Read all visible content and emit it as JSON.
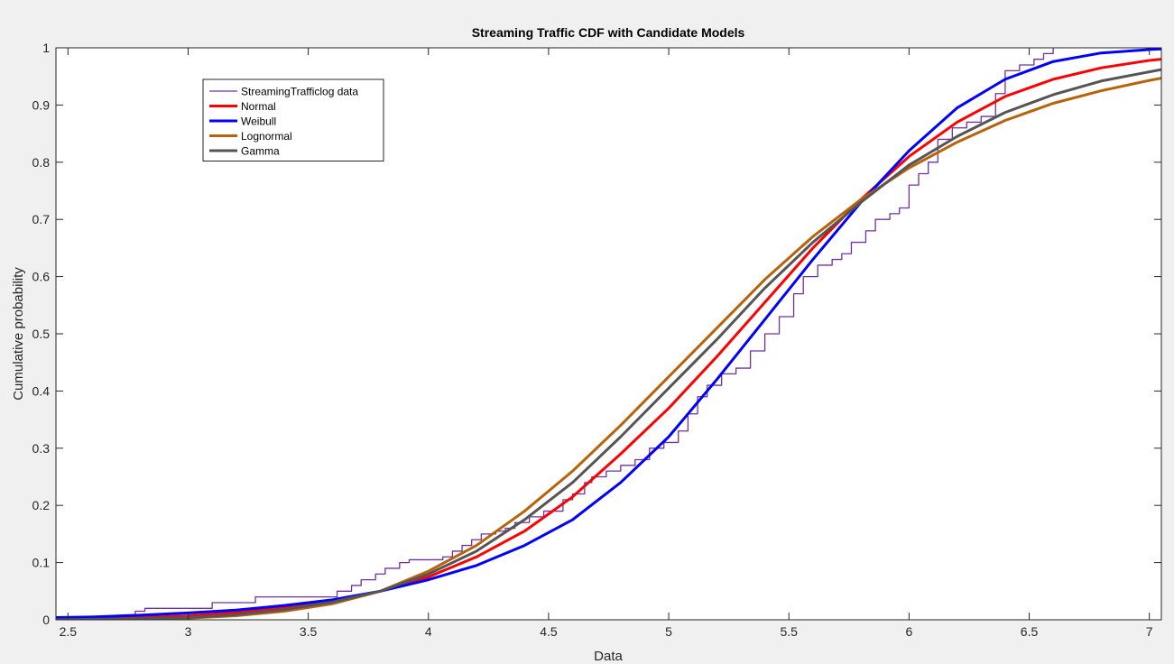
{
  "chart_data": {
    "type": "line",
    "title": "Streaming Traffic CDF with Candidate Models",
    "xlabel": "Data",
    "ylabel": "Cumulative probability",
    "xlim": [
      2.45,
      7.05
    ],
    "ylim": [
      0,
      1
    ],
    "xticks": [
      2.5,
      3,
      3.5,
      4,
      4.5,
      5,
      5.5,
      6,
      6.5,
      7
    ],
    "xtick_labels": [
      "2.5",
      "3",
      "3.5",
      "4",
      "4.5",
      "5",
      "5.5",
      "6",
      "6.5",
      "7"
    ],
    "yticks": [
      0,
      0.1,
      0.2,
      0.3,
      0.4,
      0.5,
      0.6,
      0.7,
      0.8,
      0.9,
      1
    ],
    "ytick_labels": [
      "0",
      "0.1",
      "0.2",
      "0.3",
      "0.4",
      "0.5",
      "0.6",
      "0.7",
      "0.8",
      "0.9",
      "1"
    ],
    "grid": false,
    "legend_position": "top-left",
    "series": [
      {
        "name": "StreamingTrafficlog data",
        "color": "#7030a0",
        "style": "stairs",
        "x": [
          2.45,
          2.6,
          2.78,
          2.82,
          3.1,
          3.28,
          3.62,
          3.68,
          3.72,
          3.78,
          3.82,
          3.88,
          3.92,
          4.06,
          4.1,
          4.14,
          4.18,
          4.22,
          4.28,
          4.32,
          4.36,
          4.42,
          4.48,
          4.56,
          4.6,
          4.65,
          4.68,
          4.74,
          4.8,
          4.86,
          4.92,
          4.98,
          5.04,
          5.08,
          5.12,
          5.16,
          5.22,
          5.28,
          5.34,
          5.4,
          5.46,
          5.52,
          5.56,
          5.62,
          5.68,
          5.72,
          5.76,
          5.82,
          5.86,
          5.92,
          5.96,
          6.0,
          6.04,
          6.08,
          6.12,
          6.18,
          6.24,
          6.3,
          6.36,
          6.4,
          6.46,
          6.52,
          6.56,
          6.6
        ],
        "y": [
          0.0,
          0.005,
          0.015,
          0.02,
          0.03,
          0.04,
          0.05,
          0.06,
          0.07,
          0.08,
          0.09,
          0.1,
          0.105,
          0.11,
          0.12,
          0.13,
          0.14,
          0.15,
          0.155,
          0.16,
          0.17,
          0.18,
          0.19,
          0.21,
          0.22,
          0.24,
          0.25,
          0.26,
          0.27,
          0.28,
          0.3,
          0.31,
          0.33,
          0.36,
          0.39,
          0.41,
          0.43,
          0.44,
          0.47,
          0.5,
          0.53,
          0.57,
          0.6,
          0.62,
          0.63,
          0.64,
          0.66,
          0.68,
          0.7,
          0.71,
          0.72,
          0.76,
          0.78,
          0.8,
          0.84,
          0.86,
          0.87,
          0.88,
          0.92,
          0.96,
          0.97,
          0.98,
          0.99,
          1.0
        ]
      },
      {
        "name": "Normal",
        "color": "#ff0000",
        "style": "line",
        "x": [
          2.45,
          2.6,
          2.8,
          3.0,
          3.2,
          3.4,
          3.6,
          3.8,
          4.0,
          4.2,
          4.4,
          4.6,
          4.8,
          5.0,
          5.2,
          5.4,
          5.6,
          5.8,
          6.0,
          6.2,
          6.4,
          6.6,
          6.8,
          7.0,
          7.05
        ],
        "y": [
          0.001,
          0.002,
          0.004,
          0.007,
          0.013,
          0.022,
          0.034,
          0.05,
          0.075,
          0.11,
          0.155,
          0.215,
          0.29,
          0.37,
          0.46,
          0.555,
          0.65,
          0.735,
          0.81,
          0.87,
          0.915,
          0.945,
          0.965,
          0.978,
          0.98
        ]
      },
      {
        "name": "Weibull",
        "color": "#0000ff",
        "style": "line",
        "x": [
          2.45,
          2.6,
          2.8,
          3.0,
          3.2,
          3.4,
          3.6,
          3.8,
          4.0,
          4.2,
          4.4,
          4.6,
          4.8,
          5.0,
          5.2,
          5.4,
          5.6,
          5.8,
          6.0,
          6.2,
          6.4,
          6.6,
          6.8,
          7.0,
          7.05
        ],
        "y": [
          0.004,
          0.005,
          0.008,
          0.012,
          0.017,
          0.025,
          0.035,
          0.05,
          0.07,
          0.095,
          0.13,
          0.175,
          0.24,
          0.32,
          0.42,
          0.525,
          0.63,
          0.73,
          0.82,
          0.895,
          0.945,
          0.976,
          0.991,
          0.997,
          0.998
        ]
      },
      {
        "name": "Lognormal",
        "color": "#b8620a",
        "style": "line",
        "x": [
          2.45,
          2.6,
          2.8,
          3.0,
          3.2,
          3.4,
          3.6,
          3.8,
          4.0,
          4.2,
          4.4,
          4.6,
          4.8,
          5.0,
          5.2,
          5.4,
          5.6,
          5.8,
          6.0,
          6.2,
          6.4,
          6.6,
          6.8,
          7.0,
          7.05
        ],
        "y": [
          0.0,
          0.0,
          0.001,
          0.003,
          0.007,
          0.015,
          0.028,
          0.05,
          0.085,
          0.13,
          0.19,
          0.26,
          0.34,
          0.425,
          0.51,
          0.595,
          0.67,
          0.735,
          0.79,
          0.835,
          0.873,
          0.903,
          0.925,
          0.943,
          0.947
        ]
      },
      {
        "name": "Gamma",
        "color": "#555555",
        "style": "line",
        "x": [
          2.45,
          2.6,
          2.8,
          3.0,
          3.2,
          3.4,
          3.6,
          3.8,
          4.0,
          4.2,
          4.4,
          4.6,
          4.8,
          5.0,
          5.2,
          5.4,
          5.6,
          5.8,
          6.0,
          6.2,
          6.4,
          6.6,
          6.8,
          7.0,
          7.05
        ],
        "y": [
          0.0,
          0.001,
          0.002,
          0.004,
          0.009,
          0.018,
          0.031,
          0.05,
          0.08,
          0.12,
          0.175,
          0.24,
          0.32,
          0.405,
          0.49,
          0.58,
          0.66,
          0.73,
          0.795,
          0.845,
          0.887,
          0.918,
          0.942,
          0.958,
          0.962
        ]
      }
    ]
  }
}
